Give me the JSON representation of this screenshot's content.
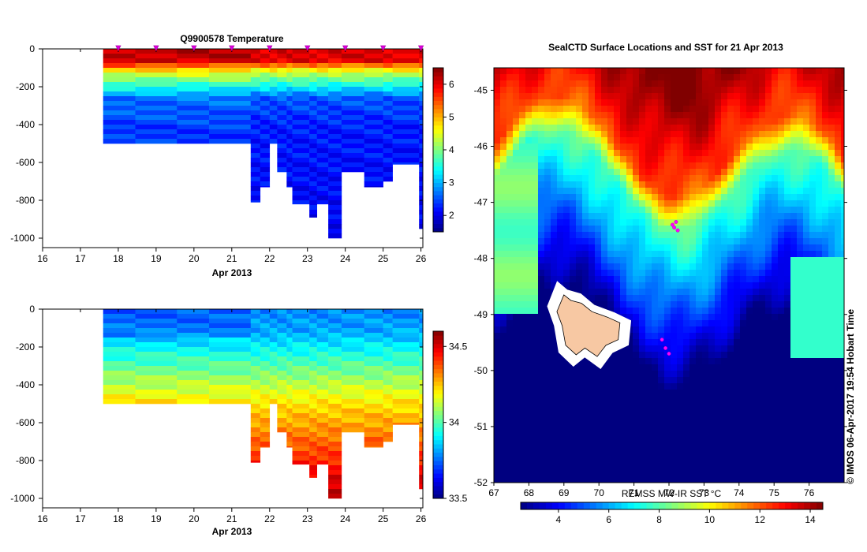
{
  "panels": {
    "temperature": {
      "title": "Q9900578  Temperature",
      "xlabel": "Apr 2013",
      "x_ticks": [
        "16",
        "17",
        "18",
        "19",
        "20",
        "21",
        "22",
        "23",
        "24",
        "25",
        "26"
      ],
      "y_ticks": [
        "0",
        "-200",
        "-400",
        "-600",
        "-800",
        "-1000"
      ],
      "colorbar_ticks": [
        "6",
        "5",
        "4",
        "3",
        "2"
      ]
    },
    "salinity": {
      "xlabel": "Apr 2013",
      "x_ticks": [
        "16",
        "17",
        "18",
        "19",
        "20",
        "21",
        "22",
        "23",
        "24",
        "25",
        "26"
      ],
      "y_ticks": [
        "0",
        "-200",
        "-400",
        "-600",
        "-800",
        "-1000"
      ],
      "colorbar_ticks": [
        "34.5",
        "34",
        "33.5"
      ]
    },
    "map": {
      "title": "SealCTD Surface Locations and SST for 21 Apr 2013",
      "lon_ticks": [
        "67",
        "68",
        "69",
        "70",
        "71",
        "72",
        "73",
        "74",
        "75",
        "76"
      ],
      "lat_ticks": [
        "-45",
        "-46",
        "-47",
        "-48",
        "-49",
        "-50",
        "-51",
        "-52"
      ],
      "colorbar_label": "REMSS MW-IR SST °C",
      "colorbar_ticks": [
        "4",
        "6",
        "8",
        "10",
        "12",
        "14"
      ],
      "credit": "© IMOS 06-Apr-2017 19:54 Hobart Time"
    }
  },
  "chart_data": [
    {
      "id": "temperature",
      "type": "heatmap",
      "title": "Q9900578  Temperature",
      "xlabel": "Apr 2013",
      "ylabel": "",
      "xlim": [
        16,
        26.05
      ],
      "ylim": [
        -1050,
        0
      ],
      "color_range": [
        1.5,
        6.5
      ],
      "colorbar_ticks": [
        6,
        5,
        4,
        3,
        2
      ],
      "profile_markers": [
        18,
        19,
        20,
        21,
        22,
        23,
        24,
        25,
        26
      ],
      "column_edges": [
        17.6,
        18.45,
        19.55,
        20.4,
        21.5,
        21.75,
        22.0,
        22.2,
        22.45,
        22.6,
        23.05,
        23.25,
        23.55,
        23.9,
        24.5,
        25.0,
        25.25,
        25.95,
        26.05
      ],
      "column_depths": [
        -500,
        -500,
        -500,
        -500,
        -810,
        -730,
        -500,
        -650,
        -730,
        -820,
        -890,
        -820,
        -1000,
        -650,
        -730,
        -700,
        -610,
        -950
      ]
    },
    {
      "id": "salinity",
      "type": "heatmap",
      "title": "",
      "xlabel": "Apr 2013",
      "ylabel": "",
      "xlim": [
        16,
        26.05
      ],
      "ylim": [
        -1050,
        0
      ],
      "color_range": [
        33.5,
        34.6
      ],
      "colorbar_ticks": [
        34.5,
        34,
        33.5
      ],
      "column_edges": [
        17.6,
        18.45,
        19.55,
        20.4,
        21.5,
        21.75,
        22.0,
        22.2,
        22.45,
        22.6,
        23.05,
        23.25,
        23.55,
        23.9,
        24.5,
        25.0,
        25.25,
        25.95,
        26.05
      ],
      "column_depths": [
        -500,
        -500,
        -500,
        -500,
        -810,
        -730,
        -500,
        -650,
        -730,
        -820,
        -890,
        -820,
        -1000,
        -650,
        -730,
        -700,
        -610,
        -950
      ]
    },
    {
      "id": "sst_map",
      "type": "heatmap",
      "title": "SealCTD Surface Locations and SST for 21 Apr 2013",
      "xlabel": "",
      "ylabel": "",
      "xlim": [
        67,
        77
      ],
      "ylim": [
        -52,
        -44.6
      ],
      "color_range": [
        2.5,
        14.5
      ],
      "colorbar_label": "REMSS MW-IR SST °C",
      "surface_locations": [
        [
          72.1,
          -47.4
        ],
        [
          72.15,
          -47.45
        ],
        [
          72.2,
          -47.35
        ],
        [
          72.25,
          -47.5
        ],
        [
          71.9,
          -49.6
        ],
        [
          72.0,
          -49.7
        ],
        [
          71.8,
          -49.45
        ]
      ]
    }
  ]
}
